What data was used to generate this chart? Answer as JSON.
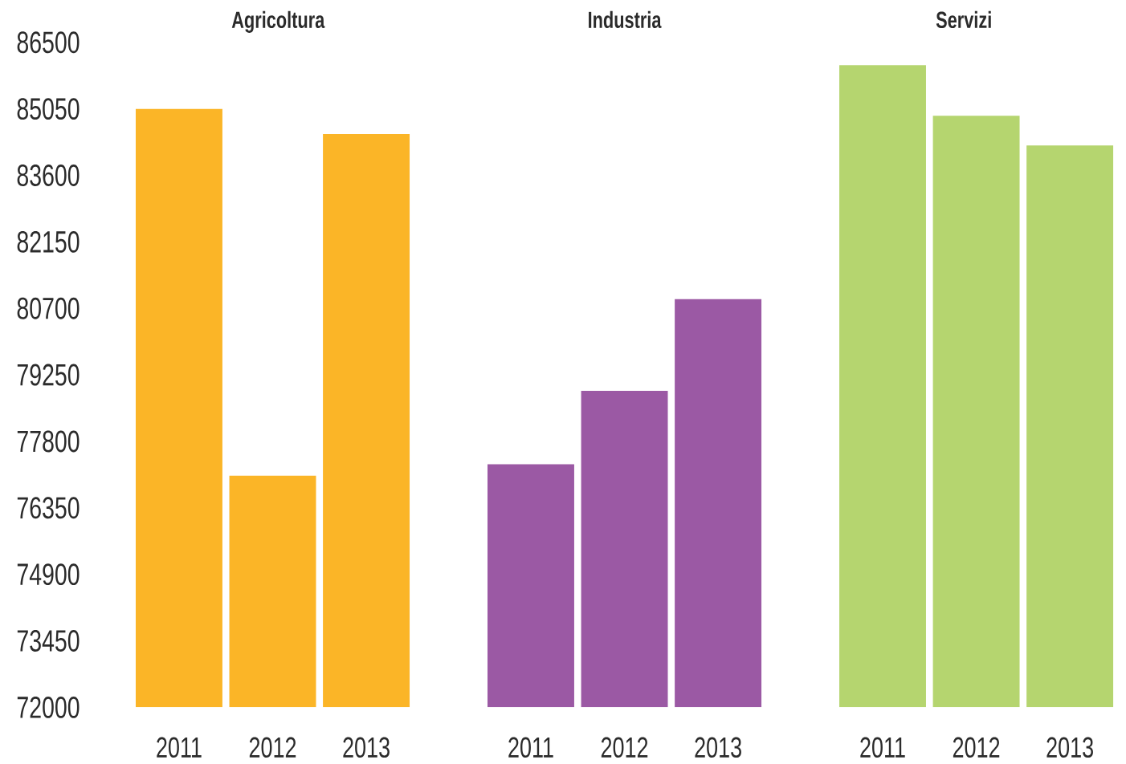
{
  "chart_data": [
    {
      "type": "bar",
      "title": "Agricoltura",
      "categories": [
        "2011",
        "2012",
        "2013"
      ],
      "values": [
        85050,
        77050,
        84500
      ],
      "color": "#fbb527",
      "ylim": [
        72000,
        86500
      ],
      "yticks": [
        72000,
        73450,
        74900,
        76350,
        77800,
        79250,
        80700,
        82150,
        83600,
        85050,
        86500
      ]
    },
    {
      "type": "bar",
      "title": "Industria",
      "categories": [
        "2011",
        "2012",
        "2013"
      ],
      "values": [
        77300,
        78900,
        80900
      ],
      "color": "#9b59a4",
      "ylim": [
        72000,
        86500
      ],
      "yticks": [
        72000,
        73450,
        74900,
        76350,
        77800,
        79250,
        80700,
        82150,
        83600,
        85050,
        86500
      ],
      "tick_labels": "x"
    },
    {
      "type": "bar",
      "title": "Servizi",
      "categories": [
        "2011",
        "2012",
        "2013"
      ],
      "values": [
        86000,
        84900,
        84250
      ],
      "color": "#b5d56f",
      "ylim": [
        72000,
        86500
      ],
      "yticks": [
        72000,
        73450,
        74900,
        76350,
        77800,
        79250,
        80700,
        82150,
        83600,
        85050,
        86500
      ],
      "tick_labels": "x"
    }
  ]
}
